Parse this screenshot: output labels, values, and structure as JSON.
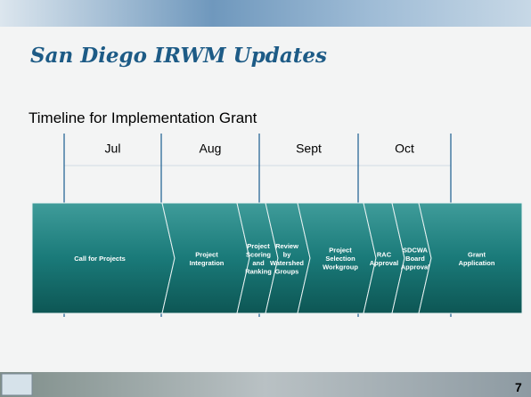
{
  "header": {
    "title": "San Diego IRWM Updates"
  },
  "subtitle": "Timeline for Implementation Grant",
  "months": [
    "Jul",
    "Aug",
    "Sept",
    "Oct"
  ],
  "chevrons": [
    {
      "lines": [
        "Call for Projects"
      ]
    },
    {
      "lines": [
        "Project",
        "Integration"
      ]
    },
    {
      "lines": [
        "Project",
        "Scoring",
        "and",
        "Ranking"
      ]
    },
    {
      "lines": [
        "Review",
        "by",
        "Watershed",
        "Groups"
      ]
    },
    {
      "lines": [
        "Project",
        "Selection",
        "Workgroup"
      ]
    },
    {
      "lines": [
        "RAC",
        "Approval"
      ]
    },
    {
      "lines": [
        "SDCWA",
        "Board",
        "Approval"
      ]
    },
    {
      "lines": [
        "Grant",
        "Application"
      ]
    }
  ],
  "footer": {
    "page_number": "7"
  }
}
